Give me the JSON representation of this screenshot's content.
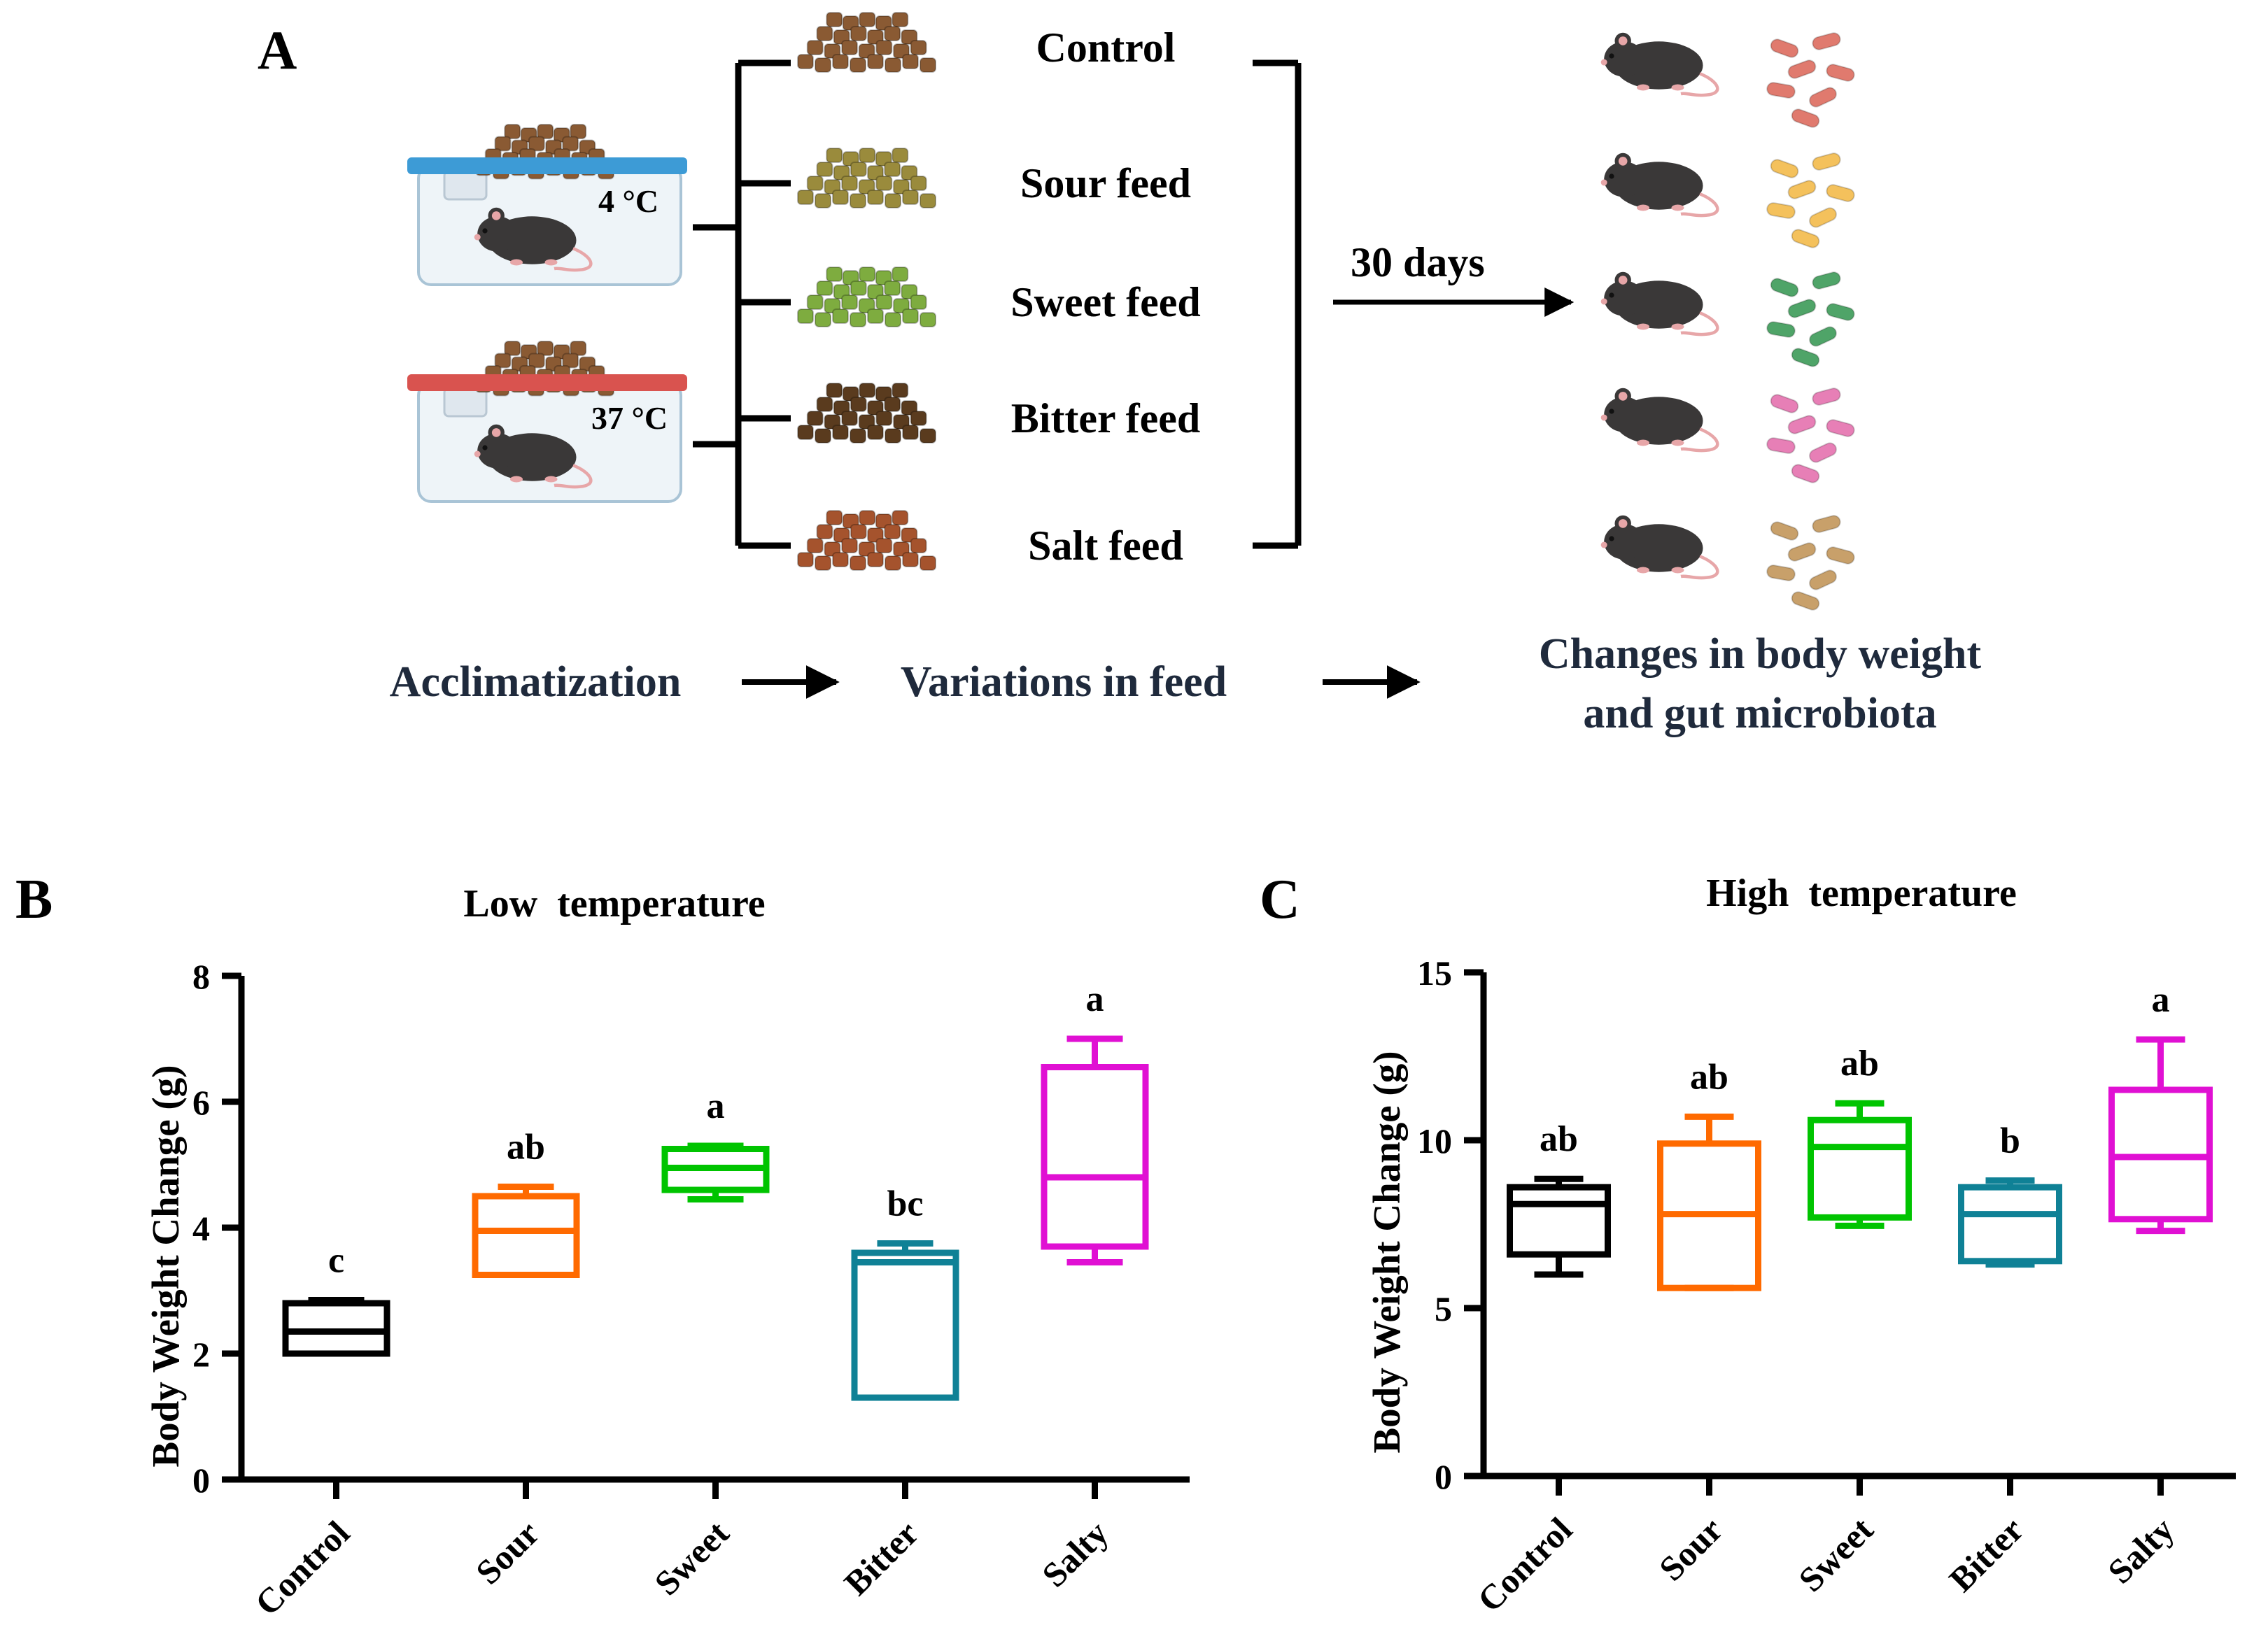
{
  "panelA": {
    "label": "A",
    "temps": [
      "4 °C",
      "37 °C"
    ],
    "feeds": [
      "Control",
      "Sour feed",
      "Sweet feed",
      "Bitter feed",
      "Salt feed"
    ],
    "feed_colors": [
      "#8a5a33",
      "#9a8b3c",
      "#7eac3f",
      "#5a3b1e",
      "#a5532d"
    ],
    "lid_colors": [
      "#3d9bd6",
      "#d9534f"
    ],
    "duration": "30 days",
    "bacteria_colors": [
      "#e07a6e",
      "#f4c15c",
      "#4fa468",
      "#e77fb6",
      "#c8a06a"
    ],
    "steps": [
      "Acclimatization",
      "Variations in feed"
    ],
    "outcome_lines": [
      "Changes in body weight",
      "and gut microbiota"
    ]
  },
  "chart_data": [
    {
      "panel": "B",
      "type": "box",
      "title": "Low  temperature",
      "ylabel": "Body Weight Change (g)",
      "xlabel": "",
      "categories": [
        "Control",
        "Sour",
        "Sweet",
        "Bitter",
        "Salty"
      ],
      "colors": [
        "#000000",
        "#ff6a00",
        "#00c400",
        "#0f8196",
        "#e010d3"
      ],
      "ylim": [
        0,
        8
      ],
      "yticks": [
        "0",
        "2",
        "4",
        "6",
        "8"
      ],
      "boxes": [
        {
          "min": 2.0,
          "q1": 2.0,
          "median": 2.35,
          "q3": 2.8,
          "max": 2.85
        },
        {
          "min": 3.25,
          "q1": 3.25,
          "median": 3.95,
          "q3": 4.5,
          "max": 4.65
        },
        {
          "min": 4.45,
          "q1": 4.6,
          "median": 4.95,
          "q3": 5.25,
          "max": 5.3
        },
        {
          "min": 1.3,
          "q1": 1.3,
          "median": 3.45,
          "q3": 3.6,
          "max": 3.75
        },
        {
          "min": 3.45,
          "q1": 3.7,
          "median": 4.8,
          "q3": 6.55,
          "max": 7.0
        }
      ],
      "letters": [
        "c",
        "ab",
        "a",
        "bc",
        "a"
      ]
    },
    {
      "panel": "C",
      "type": "box",
      "title": "High  temperature",
      "ylabel": "Body Weight Change (g)",
      "xlabel": "",
      "categories": [
        "Control",
        "Sour",
        "Sweet",
        "Bitter",
        "Salty"
      ],
      "colors": [
        "#000000",
        "#ff6a00",
        "#00c400",
        "#0f8196",
        "#e010d3"
      ],
      "ylim": [
        0,
        15
      ],
      "yticks": [
        "0",
        "5",
        "10",
        "15"
      ],
      "boxes": [
        {
          "min": 6.0,
          "q1": 6.6,
          "median": 8.1,
          "q3": 8.6,
          "max": 8.85
        },
        {
          "min": 5.6,
          "q1": 5.6,
          "median": 7.8,
          "q3": 9.9,
          "max": 10.7
        },
        {
          "min": 7.45,
          "q1": 7.7,
          "median": 9.8,
          "q3": 10.6,
          "max": 11.1
        },
        {
          "min": 6.3,
          "q1": 6.4,
          "median": 7.8,
          "q3": 8.6,
          "max": 8.8
        },
        {
          "min": 7.3,
          "q1": 7.65,
          "median": 9.5,
          "q3": 11.5,
          "max": 13.0
        }
      ],
      "letters": [
        "ab",
        "ab",
        "ab",
        "b",
        "a"
      ]
    }
  ]
}
